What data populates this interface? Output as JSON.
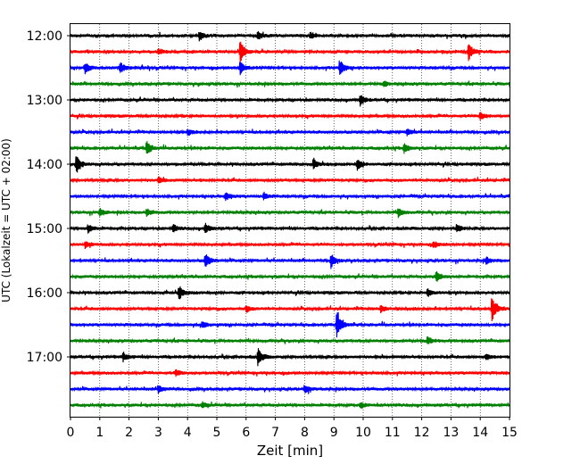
{
  "chart_data": {
    "type": "line",
    "title": "",
    "xlabel": "Zeit  [min]",
    "ylabel": "UTC (Lokalzeit = UTC + 02:00)",
    "xlim": [
      0,
      15
    ],
    "x_ticks": [
      "0",
      "1",
      "2",
      "3",
      "4",
      "5",
      "6",
      "7",
      "8",
      "9",
      "10",
      "11",
      "12",
      "13",
      "14",
      "15"
    ],
    "y_ticks": [
      "12:00",
      "13:00",
      "14:00",
      "15:00",
      "16:00",
      "17:00"
    ],
    "trace_interval_minutes": 15,
    "grid": {
      "vertical": true,
      "style": "dotted"
    },
    "colors": [
      "#000000",
      "#ff0000",
      "#0000ff",
      "#008000"
    ],
    "traces": [
      {
        "start": "12:00",
        "color": "#000000",
        "events": [
          {
            "t": 4.4,
            "amp": 0.3
          },
          {
            "t": 6.4,
            "amp": 0.25
          },
          {
            "t": 8.2,
            "amp": 0.2
          }
        ]
      },
      {
        "start": "12:15",
        "color": "#ff0000",
        "events": [
          {
            "t": 5.8,
            "amp": 0.75
          },
          {
            "t": 13.6,
            "amp": 0.55
          },
          {
            "t": 3.0,
            "amp": 0.2
          }
        ]
      },
      {
        "start": "12:30",
        "color": "#0000ff",
        "events": [
          {
            "t": 0.5,
            "amp": 0.35
          },
          {
            "t": 1.7,
            "amp": 0.35
          },
          {
            "t": 5.8,
            "amp": 0.45
          },
          {
            "t": 9.2,
            "amp": 0.55
          }
        ]
      },
      {
        "start": "12:45",
        "color": "#008000",
        "events": [
          {
            "t": 10.7,
            "amp": 0.2
          }
        ]
      },
      {
        "start": "13:00",
        "color": "#000000",
        "events": [
          {
            "t": 9.9,
            "amp": 0.35
          }
        ]
      },
      {
        "start": "13:15",
        "color": "#ff0000",
        "events": [
          {
            "t": 14.0,
            "amp": 0.25
          }
        ]
      },
      {
        "start": "13:30",
        "color": "#0000ff",
        "events": [
          {
            "t": 4.0,
            "amp": 0.2
          },
          {
            "t": 11.5,
            "amp": 0.2
          }
        ]
      },
      {
        "start": "13:45",
        "color": "#008000",
        "events": [
          {
            "t": 2.6,
            "amp": 0.45
          },
          {
            "t": 11.4,
            "amp": 0.3
          }
        ]
      },
      {
        "start": "14:00",
        "color": "#000000",
        "events": [
          {
            "t": 0.2,
            "amp": 0.6
          },
          {
            "t": 8.3,
            "amp": 0.3
          },
          {
            "t": 9.8,
            "amp": 0.35
          }
        ]
      },
      {
        "start": "14:15",
        "color": "#ff0000",
        "events": [
          {
            "t": 3.0,
            "amp": 0.2
          }
        ]
      },
      {
        "start": "14:30",
        "color": "#0000ff",
        "events": [
          {
            "t": 5.3,
            "amp": 0.25
          },
          {
            "t": 6.6,
            "amp": 0.2
          }
        ]
      },
      {
        "start": "14:45",
        "color": "#008000",
        "events": [
          {
            "t": 1.0,
            "amp": 0.25
          },
          {
            "t": 2.6,
            "amp": 0.25
          },
          {
            "t": 11.2,
            "amp": 0.3
          }
        ]
      },
      {
        "start": "15:00",
        "color": "#000000",
        "events": [
          {
            "t": 0.6,
            "amp": 0.25
          },
          {
            "t": 3.5,
            "amp": 0.25
          },
          {
            "t": 4.6,
            "amp": 0.3
          },
          {
            "t": 13.2,
            "amp": 0.25
          }
        ]
      },
      {
        "start": "15:15",
        "color": "#ff0000",
        "events": [
          {
            "t": 0.5,
            "amp": 0.2
          },
          {
            "t": 12.4,
            "amp": 0.2
          }
        ]
      },
      {
        "start": "15:30",
        "color": "#0000ff",
        "events": [
          {
            "t": 4.6,
            "amp": 0.45
          },
          {
            "t": 8.9,
            "amp": 0.45
          },
          {
            "t": 14.2,
            "amp": 0.25
          }
        ]
      },
      {
        "start": "15:45",
        "color": "#008000",
        "events": [
          {
            "t": 12.5,
            "amp": 0.35
          }
        ]
      },
      {
        "start": "16:00",
        "color": "#000000",
        "events": [
          {
            "t": 3.7,
            "amp": 0.45
          },
          {
            "t": 12.2,
            "amp": 0.25
          }
        ]
      },
      {
        "start": "16:15",
        "color": "#ff0000",
        "events": [
          {
            "t": 14.4,
            "amp": 0.8
          },
          {
            "t": 10.6,
            "amp": 0.25
          },
          {
            "t": 6.0,
            "amp": 0.2
          }
        ]
      },
      {
        "start": "16:30",
        "color": "#0000ff",
        "events": [
          {
            "t": 9.1,
            "amp": 0.9
          },
          {
            "t": 4.5,
            "amp": 0.2
          }
        ]
      },
      {
        "start": "16:45",
        "color": "#008000",
        "events": [
          {
            "t": 12.2,
            "amp": 0.25
          }
        ]
      },
      {
        "start": "17:00",
        "color": "#000000",
        "events": [
          {
            "t": 6.4,
            "amp": 0.55
          },
          {
            "t": 1.8,
            "amp": 0.25
          },
          {
            "t": 14.2,
            "amp": 0.2
          }
        ]
      },
      {
        "start": "17:15",
        "color": "#ff0000",
        "events": [
          {
            "t": 3.6,
            "amp": 0.2
          }
        ]
      },
      {
        "start": "17:30",
        "color": "#0000ff",
        "events": [
          {
            "t": 3.0,
            "amp": 0.25
          },
          {
            "t": 8.0,
            "amp": 0.25
          }
        ]
      },
      {
        "start": "17:45",
        "color": "#008000",
        "events": [
          {
            "t": 4.5,
            "amp": 0.2
          },
          {
            "t": 9.9,
            "amp": 0.2
          }
        ]
      }
    ]
  }
}
